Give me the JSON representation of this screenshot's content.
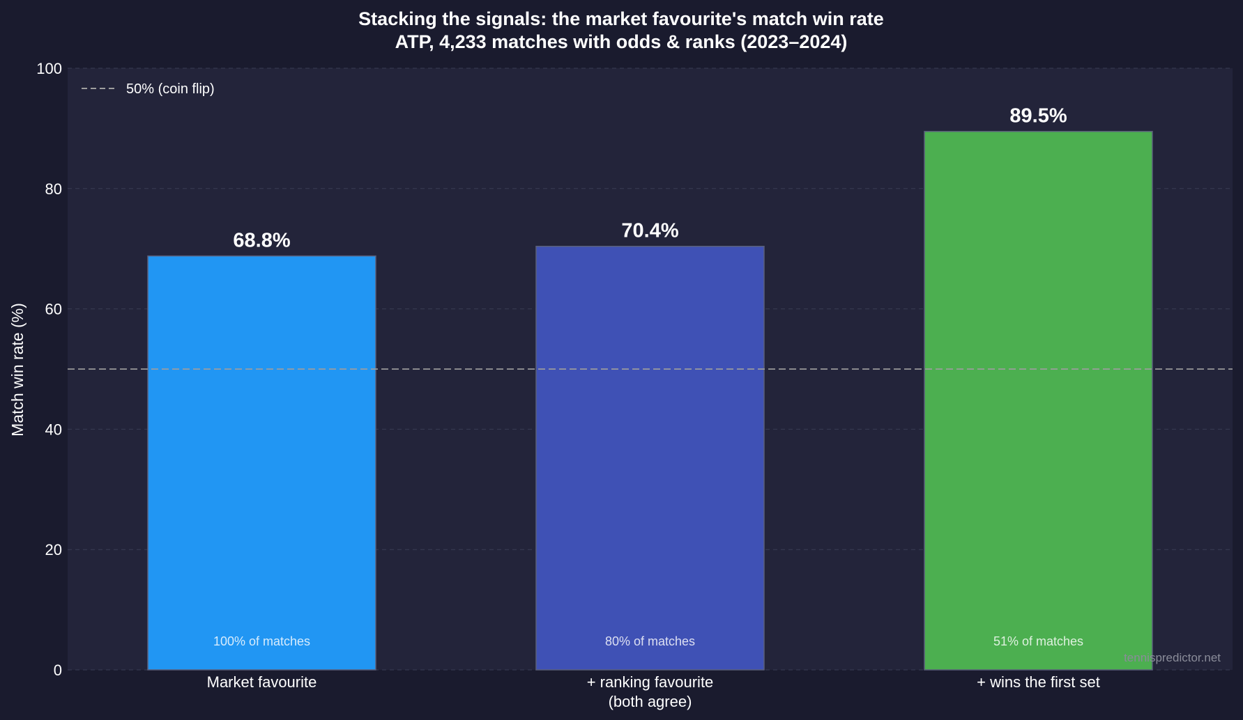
{
  "chart_data": {
    "type": "bar",
    "title_line1": "Stacking the signals: the market favourite's match win rate",
    "title_line2": "ATP, 4,233 matches with odds & ranks (2023–2024)",
    "ylabel": "Match win rate (%)",
    "xlabel": "",
    "ylim": [
      0,
      100
    ],
    "yticks": [
      "0",
      "20",
      "40",
      "60",
      "80",
      "100"
    ],
    "grid": true,
    "categories": [
      [
        "Market favourite"
      ],
      [
        "+ ranking favourite",
        "(both agree)"
      ],
      [
        "+ wins the first set"
      ]
    ],
    "values": [
      68.8,
      70.4,
      89.5
    ],
    "value_labels": [
      "68.8%",
      "70.4%",
      "89.5%"
    ],
    "share_labels": [
      "100% of matches",
      "80% of matches",
      "51% of matches"
    ],
    "colors": [
      "#2196f3",
      "#3f51b5",
      "#4caf50"
    ],
    "reference_line": {
      "value": 50,
      "label": "50% (coin flip)",
      "color": "#9e9e9e"
    },
    "legend_position": "top-left",
    "watermark": "tennispredictor.net"
  },
  "theme": {
    "page_bg": "#1a1b2e",
    "plot_bg": "#23243a",
    "grid_color": "#3a3c54"
  }
}
